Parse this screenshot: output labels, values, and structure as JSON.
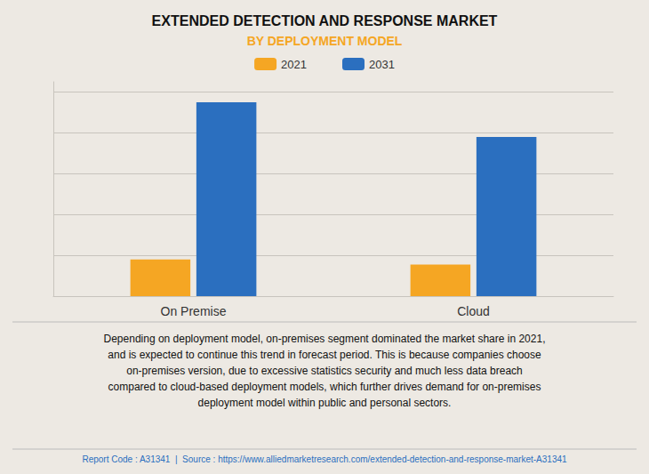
{
  "chart_data": {
    "type": "bar",
    "title": "EXTENDED DETECTION AND RESPONSE MARKET",
    "subtitle": "BY DEPLOYMENT MODEL",
    "categories": [
      "On Premise",
      "Cloud"
    ],
    "series": [
      {
        "name": "2021",
        "color": "#F5A623",
        "values": [
          0.18,
          0.155
        ]
      },
      {
        "name": "2031",
        "color": "#2B6FBF",
        "values": [
          0.95,
          0.78
        ]
      }
    ],
    "ylim": [
      0,
      1.05
    ],
    "yticks": [
      0,
      0.2,
      0.4,
      0.6,
      0.8,
      1.0
    ],
    "grid": true,
    "legend": "top",
    "tick_labels": "x",
    "annotation": "Depending on deployment model, on-premises segment dominated the market share in 2021,\nand is expected to continue this trend in forecast period. This is because companies choose\non-premises version, due to excessive statistics security and much less data breach\ncompared to cloud-based deployment models, which further drives demand for on-premises\ndeployment model within public and personal sectors.",
    "footer": "Report Code : A31341  |  Source : https://www.alliedmarketresearch.com/extended-detection-and-response-market-A31341"
  }
}
